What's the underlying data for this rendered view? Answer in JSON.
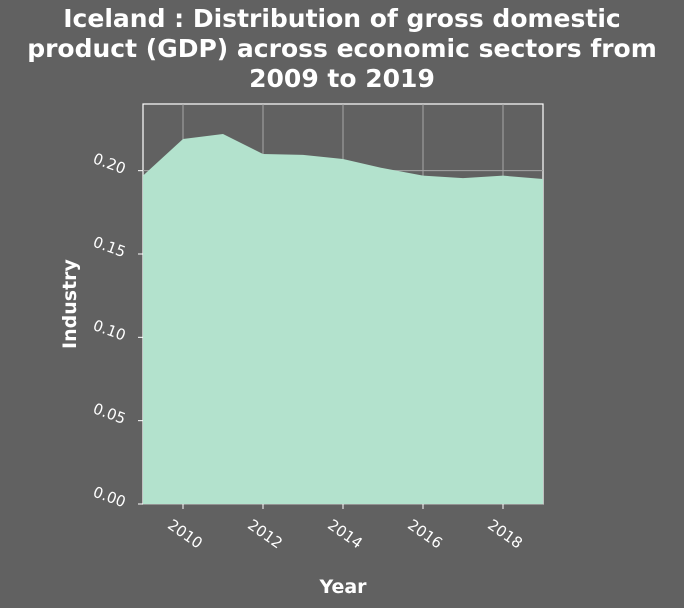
{
  "title_lines": [
    "Iceland : Distribution of gross domestic",
    "product (GDP) across economic sectors from",
    "2009 to 2019"
  ],
  "chart_data": {
    "type": "area",
    "title": "Iceland : Distribution of gross domestic product (GDP) across economic sectors from 2009 to 2019",
    "xlabel": "Year",
    "ylabel": "Industry",
    "x": [
      2009,
      2010,
      2011,
      2012,
      2013,
      2014,
      2015,
      2016,
      2017,
      2018,
      2019
    ],
    "series": [
      {
        "values": [
          0.197,
          0.219,
          0.222,
          0.21,
          0.2095,
          0.207,
          0.2015,
          0.197,
          0.1955,
          0.197,
          0.195
        ]
      }
    ],
    "xlim": [
      2009,
      2019
    ],
    "ylim": [
      0,
      0.24
    ],
    "x_ticks": [
      2010,
      2012,
      2014,
      2016,
      2018
    ],
    "x_tick_labels": [
      "2010",
      "2012",
      "2014",
      "2016",
      "2018"
    ],
    "y_ticks": [
      0,
      0.05,
      0.1,
      0.15,
      0.2
    ],
    "y_tick_labels": [
      "0.00",
      "0.05",
      "0.10",
      "0.15",
      "0.20"
    ],
    "grid": true,
    "colors": {
      "background": "#616161",
      "area": "#b3e2cd",
      "grid": "#a6a6a6",
      "text": "#ffffff"
    }
  }
}
